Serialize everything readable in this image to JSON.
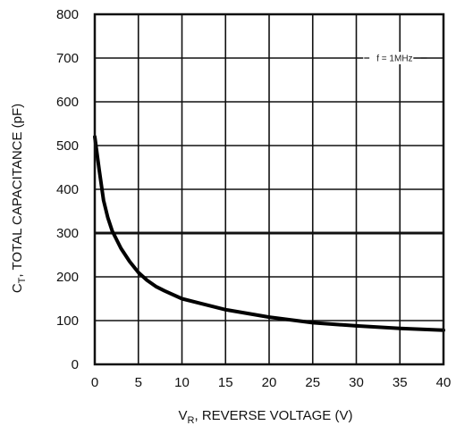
{
  "chart_data": {
    "type": "line",
    "xlabel": {
      "main": "V",
      "sub": "R",
      "rest": ", REVERSE VOLTAGE (V)"
    },
    "ylabel": {
      "main": "C",
      "sub": "T",
      "rest": ", TOTAL CAPACITANCE (pF)"
    },
    "xlim": [
      0,
      40
    ],
    "ylim": [
      0,
      800
    ],
    "xticks": [
      "0",
      "5",
      "10",
      "15",
      "20",
      "25",
      "30",
      "35",
      "40"
    ],
    "yticks": [
      "0",
      "100",
      "200",
      "300",
      "400",
      "500",
      "600",
      "700",
      "800"
    ],
    "grid": true,
    "annotation": "f = 1MHz",
    "series": [
      {
        "x": [
          0,
          0.5,
          1,
          1.5,
          2,
          3,
          4,
          5,
          6,
          7,
          8,
          10,
          12,
          15,
          20,
          25,
          30,
          35,
          40
        ],
        "y": [
          520,
          445,
          375,
          335,
          305,
          265,
          235,
          210,
          192,
          178,
          168,
          150,
          140,
          125,
          108,
          95,
          88,
          82,
          78
        ]
      }
    ]
  }
}
